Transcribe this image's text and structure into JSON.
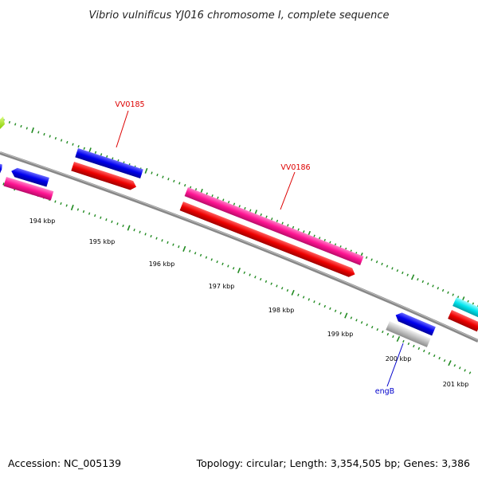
{
  "title": "Vibrio vulnificus YJ016 chromosome I, complete sequence",
  "footer": {
    "accession": "Accession: NC_005139",
    "topology": "Topology: circular; Length: 3,354,505 bp; Genes: 3,386"
  },
  "scale_labels": [
    "194 kbp",
    "195 kbp",
    "196 kbp",
    "197 kbp",
    "198 kbp",
    "199 kbp",
    "200 kbp",
    "201 kbp"
  ],
  "gene_labels": [
    {
      "id": "vv0185",
      "text": "VV0185",
      "color": "#dd0000"
    },
    {
      "id": "vv0186",
      "text": "VV0186",
      "color": "#dd0000"
    },
    {
      "id": "engb",
      "text": "engB",
      "color": "#0000cc"
    }
  ],
  "colors": {
    "backbone": "#888888",
    "tick": "#228b22",
    "blue": "#0000ee",
    "red": "#ee0000",
    "pink": "#ff1493",
    "gray": "#c0c0c0",
    "cyan": "#00e5ee",
    "lime": "#aaff00"
  }
}
